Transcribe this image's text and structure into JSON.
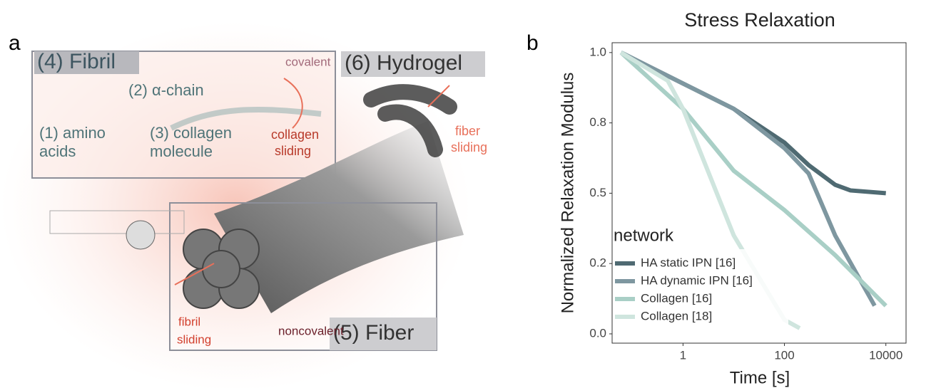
{
  "chart_data": {
    "type": "line",
    "panel_label": "b",
    "title": "Stress Relaxation",
    "x_label": "Time [s]",
    "y_label": "Normalized Relaxation Modulus",
    "x_scale": "log",
    "xlim": [
      0.04,
      25000
    ],
    "xticks": [
      1,
      100,
      10000
    ],
    "ylim": [
      -0.033,
      1.035
    ],
    "yticks": [
      {
        "value": 0,
        "label": "0.0"
      },
      {
        "value": 0.25,
        "label": "0.2"
      },
      {
        "value": 0.5,
        "label": "0.5"
      },
      {
        "value": 0.75,
        "label": "0.8"
      },
      {
        "value": 1,
        "label": "1.0"
      }
    ],
    "grid": false,
    "legend_title": "network",
    "legend_position": "bottom-left",
    "series": [
      {
        "name": "HA static IPN [16]",
        "color": "#4f6a72",
        "x": [
          0.06,
          1,
          10,
          100,
          300,
          1000,
          2000,
          10000
        ],
        "values": [
          1.0,
          0.89,
          0.8,
          0.68,
          0.6,
          0.53,
          0.51,
          0.5
        ]
      },
      {
        "name": "HA dynamic IPN [16]",
        "color": "#7e97a0",
        "x": [
          0.06,
          1,
          10,
          100,
          300,
          1000,
          6000
        ],
        "values": [
          1.0,
          0.89,
          0.8,
          0.66,
          0.57,
          0.35,
          0.1
        ]
      },
      {
        "name": "Collagen [16]",
        "color": "#a9cfc6",
        "x": [
          0.06,
          1,
          10,
          100,
          1000,
          10000
        ],
        "values": [
          1.0,
          0.8,
          0.58,
          0.44,
          0.28,
          0.1
        ]
      },
      {
        "name": "Collagen [18]",
        "color": "#cfe5de",
        "x": [
          0.06,
          0.5,
          1,
          10,
          100,
          200
        ],
        "values": [
          1.0,
          0.9,
          0.8,
          0.35,
          0.05,
          0.02
        ]
      }
    ]
  },
  "diagram": {
    "panel_label": "a",
    "boxes": {
      "fibril": "(4) Fibril",
      "hydrogel": "(6) Hydrogel",
      "fiber": "(5) Fiber"
    },
    "labels": [
      "(2) α-chain",
      "covalent",
      "(1) amino",
      "acids",
      "(3) collagen",
      "molecule",
      "collagen",
      "sliding",
      "fiber",
      "sliding",
      "fibril",
      "sliding",
      "noncovalent"
    ]
  }
}
